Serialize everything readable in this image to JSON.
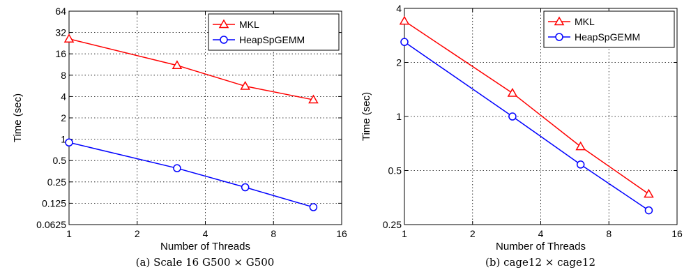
{
  "chart_data": [
    {
      "type": "line",
      "caption": "(a) Scale 16 G500 × G500",
      "xlabel": "Number of Threads",
      "ylabel": "Time (sec)",
      "xscale": "log2",
      "yscale": "log2",
      "xlim": [
        1,
        16
      ],
      "ylim": [
        0.0625,
        64
      ],
      "xticks": [
        1,
        2,
        4,
        8,
        16
      ],
      "xtick_labels": [
        "1",
        "2",
        "4",
        "8",
        "16"
      ],
      "yticks": [
        0.0625,
        0.125,
        0.25,
        0.5,
        1,
        2,
        4,
        8,
        16,
        32,
        64
      ],
      "ytick_labels": [
        "0.0625",
        "0.125",
        "0.25",
        "0.5",
        "1",
        "2",
        "4",
        "8",
        "16",
        "32",
        "64"
      ],
      "grid": true,
      "legend_position": "top-right",
      "x": [
        1,
        3,
        6,
        12
      ],
      "series": [
        {
          "name": "MKL",
          "marker": "triangle",
          "color": "#ff0000",
          "values": [
            26,
            11,
            5.6,
            3.6
          ]
        },
        {
          "name": "HeapSpGEMM",
          "marker": "circle",
          "color": "#0000ff",
          "values": [
            0.9,
            0.39,
            0.21,
            0.11
          ]
        }
      ]
    },
    {
      "type": "line",
      "caption": "(b) cage12 × cage12",
      "xlabel": "Number of Threads",
      "ylabel": "Time (sec)",
      "xscale": "log2",
      "yscale": "log2",
      "xlim": [
        1,
        16
      ],
      "ylim": [
        0.25,
        4
      ],
      "xticks": [
        1,
        2,
        4,
        8,
        16
      ],
      "xtick_labels": [
        "1",
        "2",
        "4",
        "8",
        "16"
      ],
      "yticks": [
        0.25,
        0.5,
        1,
        2,
        4
      ],
      "ytick_labels": [
        "0.25",
        "0.5",
        "1",
        "2",
        "4"
      ],
      "grid": true,
      "legend_position": "top-right",
      "x": [
        1,
        3,
        6,
        12
      ],
      "series": [
        {
          "name": "MKL",
          "marker": "triangle",
          "color": "#ff0000",
          "values": [
            3.4,
            1.35,
            0.68,
            0.37
          ]
        },
        {
          "name": "HeapSpGEMM",
          "marker": "circle",
          "color": "#0000ff",
          "values": [
            2.6,
            1.0,
            0.54,
            0.3
          ]
        }
      ]
    }
  ]
}
